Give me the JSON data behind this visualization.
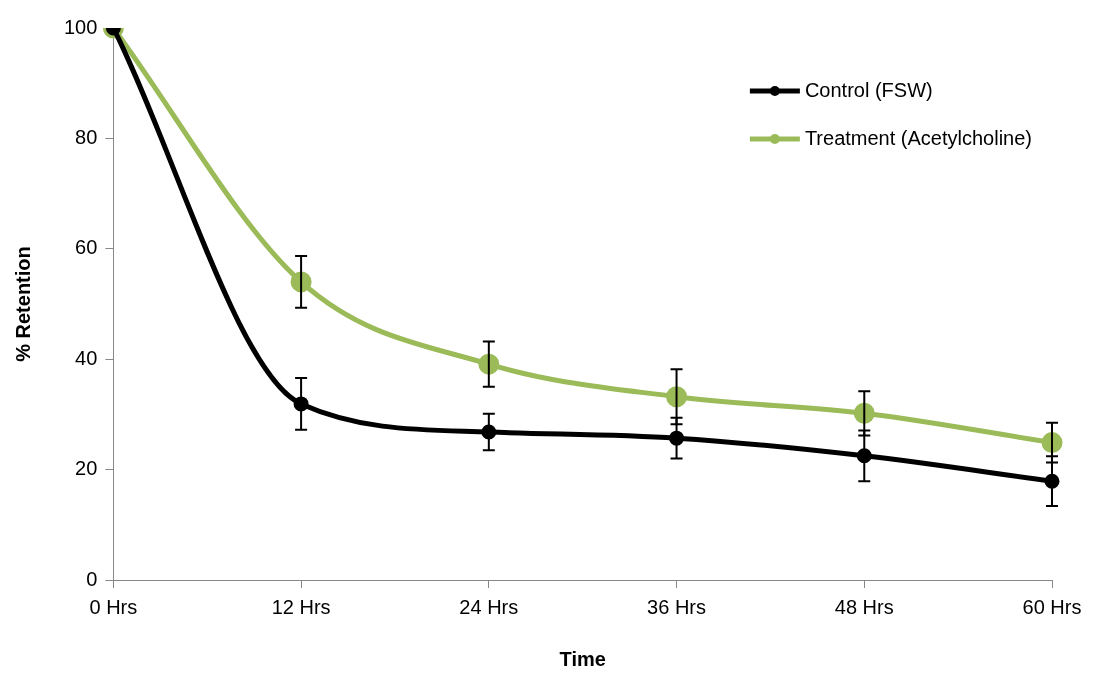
{
  "chart_data": {
    "type": "line",
    "xlabel": "Time",
    "ylabel": "% Retention",
    "categories": [
      "0 Hrs",
      "12 Hrs",
      "24 Hrs",
      "36 Hrs",
      "48 Hrs",
      "60 Hrs"
    ],
    "series": [
      {
        "name": "Control (FSW)",
        "color": "#000000",
        "values": [
          100,
          31.9,
          26.8,
          25.7,
          22.5,
          17.9
        ],
        "errors": [
          null,
          4.7,
          3.3,
          3.7,
          4.6,
          4.5
        ]
      },
      {
        "name": "Treatment (Acetylcholine)",
        "color": "#9bbb59",
        "values": [
          100,
          54.0,
          39.1,
          33.2,
          30.2,
          24.9
        ],
        "errors": [
          null,
          4.7,
          4.1,
          5.0,
          4.0,
          3.6
        ]
      }
    ],
    "ylim": [
      0,
      100
    ],
    "yticks": [
      0,
      20,
      40,
      60,
      80,
      100
    ],
    "grid": false,
    "legend": "top right",
    "marker": "circle",
    "line_style": "solid"
  }
}
